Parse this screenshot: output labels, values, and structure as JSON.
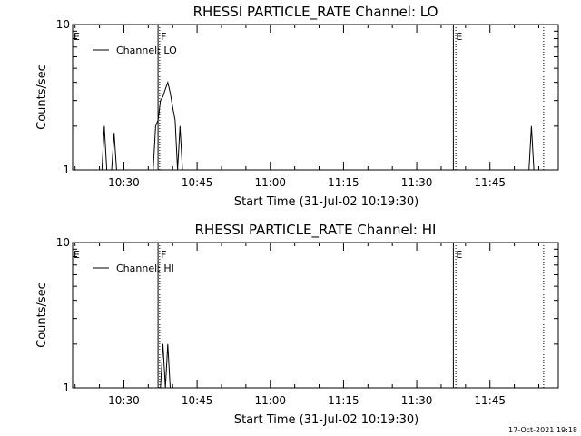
{
  "chart_data": [
    {
      "type": "line",
      "title": "RHESSI PARTICLE_RATE Channel: LO",
      "xlabel": "Start Time (31-Jul-02 10:19:30)",
      "ylabel": "Counts/sec",
      "yscale": "log",
      "ylim": [
        1,
        10
      ],
      "xlim": [
        "10:19:30",
        "11:59:00"
      ],
      "x_ticks": [
        "10:30",
        "10:45",
        "11:00",
        "11:15",
        "11:30",
        "11:45"
      ],
      "y_ticks": [
        "1",
        "10"
      ],
      "legend": {
        "placement": "top-left",
        "entries": [
          "Channel: LO"
        ]
      },
      "grid": false,
      "series": [
        {
          "name": "Channel: LO",
          "points": [
            [
              "10:25:30",
              1
            ],
            [
              "10:26:00",
              2
            ],
            [
              "10:26:30",
              1
            ],
            [
              "10:27:30",
              1
            ],
            [
              "10:28:00",
              1.8
            ],
            [
              "10:28:30",
              1
            ],
            [
              "10:36:00",
              1
            ],
            [
              "10:36:30",
              2
            ],
            [
              "10:37:00",
              2.2
            ],
            [
              "10:37:30",
              3
            ],
            [
              "10:38:00",
              3.2
            ],
            [
              "10:38:30",
              3.6
            ],
            [
              "10:39:00",
              4
            ],
            [
              "10:39:30",
              3.4
            ],
            [
              "10:40:00",
              2.7
            ],
            [
              "10:40:30",
              2.2
            ],
            [
              "10:41:00",
              1
            ],
            [
              "10:41:30",
              2
            ],
            [
              "10:42:00",
              1
            ],
            [
              "11:53:00",
              1
            ],
            [
              "11:53:30",
              2
            ],
            [
              "11:54:00",
              1
            ]
          ]
        }
      ],
      "vlines": [
        {
          "time": "10:37:00",
          "style": "solid",
          "label": "F"
        },
        {
          "time": "10:37:20",
          "style": "dotted",
          "label": ""
        },
        {
          "time": "11:37:30",
          "style": "solid",
          "label": "E"
        },
        {
          "time": "11:38:00",
          "style": "dotted",
          "label": ""
        },
        {
          "time": "11:56:00",
          "style": "dotted",
          "label": ""
        }
      ],
      "edge_label": "E"
    },
    {
      "type": "line",
      "title": "RHESSI PARTICLE_RATE Channel: HI",
      "xlabel": "Start Time (31-Jul-02 10:19:30)",
      "ylabel": "Counts/sec",
      "yscale": "log",
      "ylim": [
        1,
        10
      ],
      "xlim": [
        "10:19:30",
        "11:59:00"
      ],
      "x_ticks": [
        "10:30",
        "10:45",
        "11:00",
        "11:15",
        "11:30",
        "11:45"
      ],
      "y_ticks": [
        "1",
        "10"
      ],
      "legend": {
        "placement": "top-left",
        "entries": [
          "Channel: HI"
        ]
      },
      "grid": false,
      "series": [
        {
          "name": "Channel: HI",
          "points": [
            [
              "10:37:30",
              1
            ],
            [
              "10:38:00",
              2
            ],
            [
              "10:38:30",
              1
            ],
            [
              "10:39:00",
              2
            ],
            [
              "10:39:30",
              1
            ]
          ]
        }
      ],
      "vlines": [
        {
          "time": "10:37:00",
          "style": "solid",
          "label": "F"
        },
        {
          "time": "10:37:20",
          "style": "dotted",
          "label": ""
        },
        {
          "time": "11:37:30",
          "style": "solid",
          "label": "E"
        },
        {
          "time": "11:38:00",
          "style": "dotted",
          "label": ""
        },
        {
          "time": "11:56:00",
          "style": "dotted",
          "label": ""
        }
      ],
      "edge_label": "E"
    }
  ],
  "footer": {
    "timestamp": "17-Oct-2021 19:18"
  }
}
